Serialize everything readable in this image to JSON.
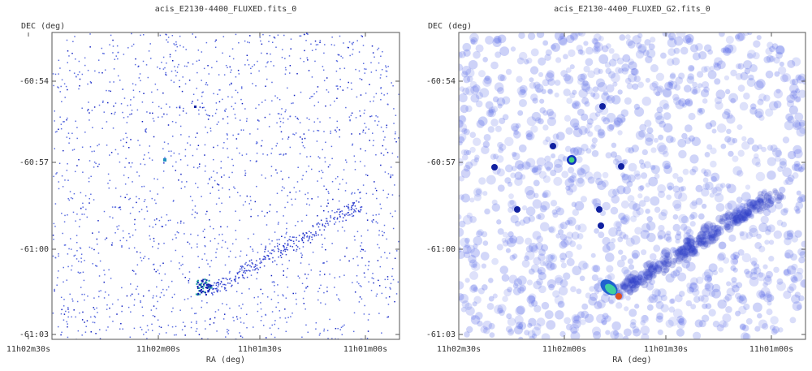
{
  "panels": [
    {
      "title": "acis_E2130-4400_FLUXED.fits_0",
      "y_label": "DEC (deg)",
      "x_label": "RA (deg)",
      "y_ticks": [
        "-60:54",
        "-60:57",
        "-61:00",
        "-61:03"
      ],
      "x_ticks": [
        "11h02m30s",
        "11h02m00s",
        "11h01m30s",
        "11h01m00s"
      ]
    },
    {
      "title": "acis_E2130-4400_FLUXED_G2.fits_0",
      "y_label": "DEC (deg)",
      "x_label": "RA (deg)",
      "y_ticks": [
        "-60:54",
        "-60:57",
        "-61:00",
        "-61:03"
      ],
      "x_ticks": [
        "11h02m30s",
        "11h02m00s",
        "11h01m30s",
        "11h01m00s"
      ]
    }
  ]
}
